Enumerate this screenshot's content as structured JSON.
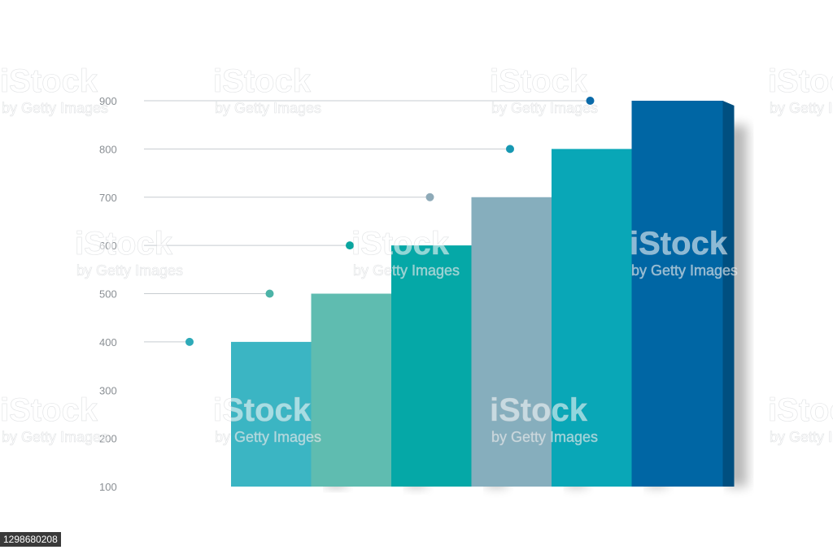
{
  "chart_data": {
    "type": "bar",
    "categories": [
      "",
      "",
      "",
      "",
      "",
      ""
    ],
    "values": [
      400,
      500,
      600,
      700,
      800,
      900
    ],
    "colors": [
      "#3bb5c3",
      "#5fbcb0",
      "#05a8a7",
      "#86aebd",
      "#09a7b7",
      "#0066a4"
    ],
    "dot_colors": [
      "#2eaab8",
      "#4cb3a7",
      "#0aa59f",
      "#8eaab8",
      "#1798b2",
      "#0a6aa9"
    ],
    "yticks": [
      "900",
      "800",
      "700",
      "600",
      "500",
      "400",
      "300",
      "200",
      "100"
    ],
    "ylim": [
      100,
      900
    ],
    "title": "",
    "xlabel": "",
    "ylabel": "",
    "grid": false
  },
  "watermark": {
    "brand": "iStock",
    "credit": "by Getty Images"
  },
  "stock_id": "1298680208"
}
